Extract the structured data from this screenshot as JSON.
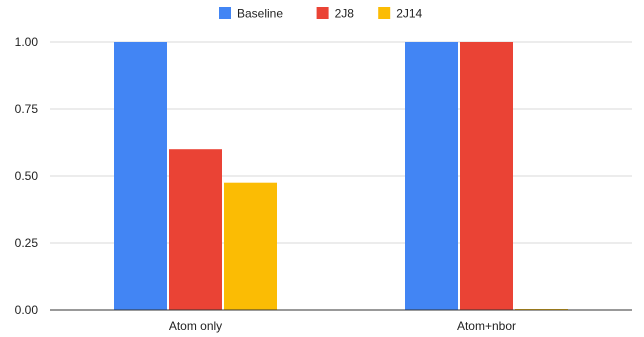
{
  "chart_data": {
    "type": "bar",
    "categories": [
      "Atom only",
      "Atom+nbor"
    ],
    "series": [
      {
        "name": "Baseline",
        "values": [
          1.0,
          1.0
        ],
        "color": "#4285F4"
      },
      {
        "name": "2J8",
        "values": [
          0.6,
          1.0
        ],
        "color": "#EA4335"
      },
      {
        "name": "2J14",
        "values": [
          0.475,
          0.003
        ],
        "color": "#FBBC04"
      }
    ],
    "yticks": [
      "0.00",
      "0.25",
      "0.50",
      "0.75",
      "1.00"
    ],
    "ylim": [
      0,
      1
    ],
    "grid": true,
    "legend_position": "top-center",
    "gridline_color": "#d9d9d9",
    "axis_color": "#333333"
  }
}
